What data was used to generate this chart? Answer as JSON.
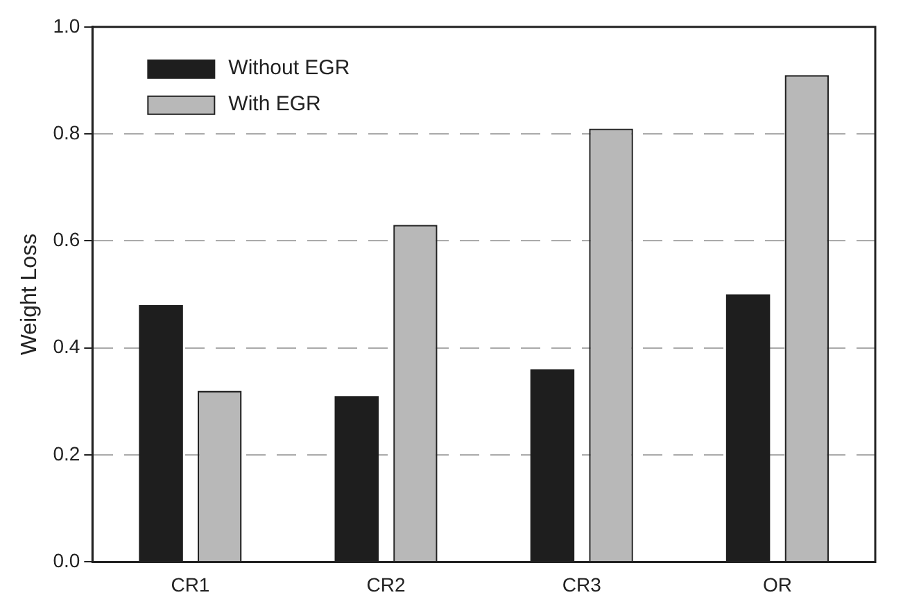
{
  "chart_data": {
    "type": "bar",
    "ylabel": "Weight Loss",
    "categories": [
      "CR1",
      "CR2",
      "CR3",
      "OR"
    ],
    "series": [
      {
        "name": "Without EGR",
        "color": "#1e1e1e",
        "values": [
          0.48,
          0.31,
          0.36,
          0.5
        ]
      },
      {
        "name": "With EGR",
        "color": "#b8b8b8",
        "values": [
          0.32,
          0.63,
          0.81,
          0.91
        ]
      }
    ],
    "ylim": [
      0,
      1
    ],
    "yticks": [
      {
        "value": 0,
        "label": "0.0"
      },
      {
        "value": 0.2,
        "label": "0.2"
      },
      {
        "value": 0.4,
        "label": "0.4"
      },
      {
        "value": 0.6,
        "label": "0.6"
      },
      {
        "value": 0.8,
        "label": "0.8"
      },
      {
        "value": 1,
        "label": "1.0"
      }
    ],
    "grid": "y",
    "legend": "top left"
  }
}
